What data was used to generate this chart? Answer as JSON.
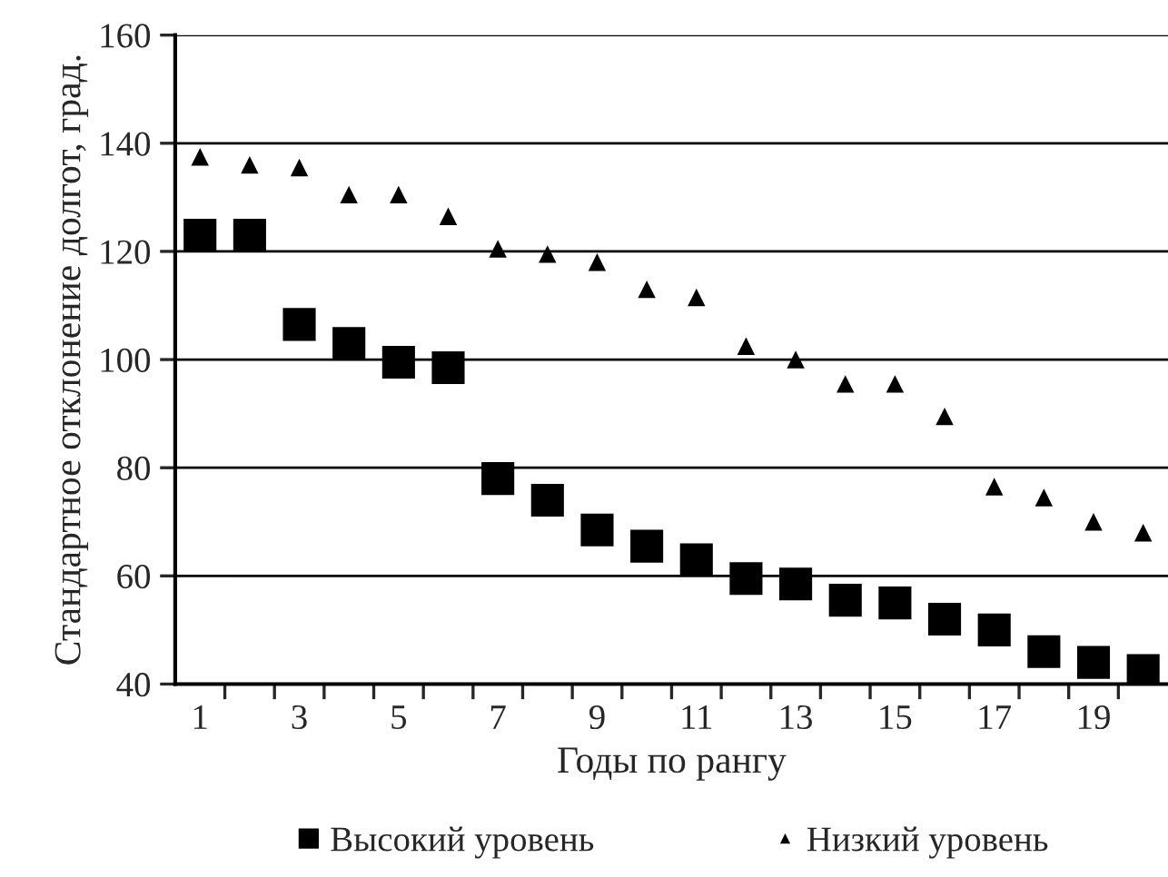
{
  "chart_data": {
    "type": "scatter",
    "xlabel": "Годы по рангу",
    "ylabel": "Стандартное отклонение долгот, град.",
    "categories": [
      "1",
      null,
      "3",
      null,
      "5",
      null,
      "7",
      null,
      "9",
      null,
      "11",
      null,
      "13",
      null,
      "15",
      null,
      "17",
      null,
      "19",
      null
    ],
    "series": [
      {
        "name": "Высокий уровень",
        "color": "#000000",
        "marker": "square",
        "values": [
          123,
          123,
          106.5,
          103,
          99.5,
          98.5,
          78,
          74,
          68.5,
          65.5,
          63,
          59.5,
          58.5,
          55.5,
          55,
          52,
          50,
          46,
          44,
          42.5
        ]
      },
      {
        "name": "Низкий уровень",
        "color": "#000000",
        "marker": "triangle",
        "values": [
          137.5,
          136,
          135.5,
          130.5,
          130.5,
          126.5,
          120.5,
          119.5,
          118,
          113,
          111.5,
          102.5,
          100,
          95.5,
          95.5,
          89.5,
          76.5,
          74.5,
          70,
          68
        ]
      }
    ],
    "ylim": [
      40,
      160
    ],
    "yticks": [
      40,
      60,
      80,
      100,
      120,
      140,
      160
    ],
    "grid": "y",
    "legend": "bottom"
  }
}
